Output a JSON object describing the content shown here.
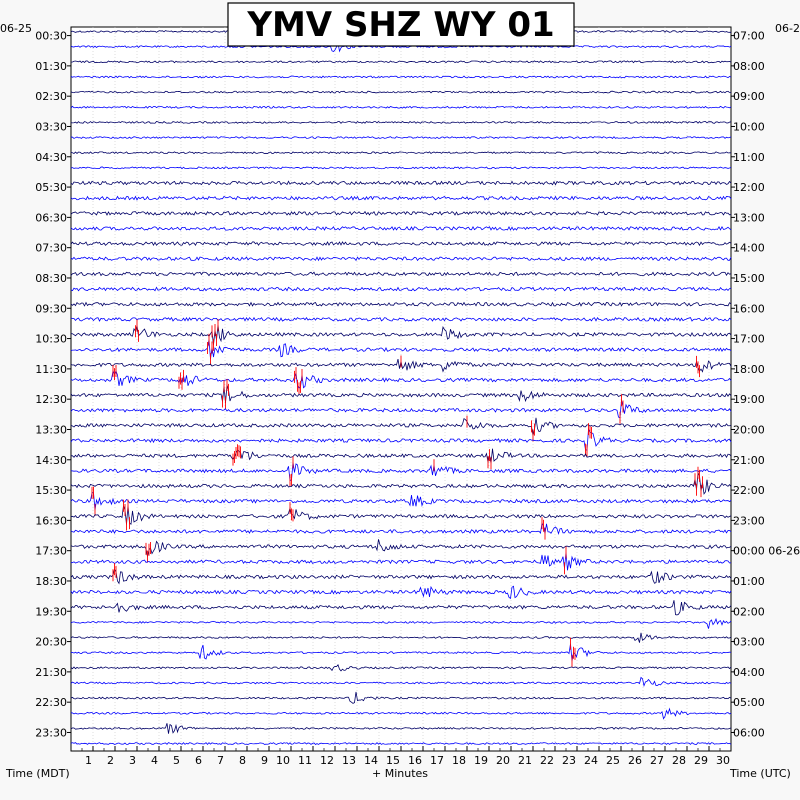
{
  "chart_data": {
    "type": "line",
    "title": "YMV SHZ WY 01",
    "left_date_label": "06-25",
    "right_date_label": "06-2",
    "xlabel": "+ Minutes",
    "left_axis_label": "Time (MDT)",
    "right_axis_label": "Time (UTC)",
    "xlim": [
      0,
      30
    ],
    "x_ticks": [
      "1",
      "2",
      "3",
      "4",
      "5",
      "6",
      "7",
      "8",
      "9",
      "10",
      "11",
      "12",
      "13",
      "14",
      "15",
      "16",
      "17",
      "18",
      "19",
      "20",
      "21",
      "22",
      "23",
      "24",
      "25",
      "26",
      "27",
      "28",
      "29",
      "30"
    ],
    "left_ticks": [
      "00:30",
      "01:30",
      "02:30",
      "03:30",
      "04:30",
      "05:30",
      "06:30",
      "07:30",
      "08:30",
      "09:30",
      "10:30",
      "11:30",
      "12:30",
      "13:30",
      "14:30",
      "15:30",
      "16:30",
      "17:30",
      "18:30",
      "19:30",
      "20:30",
      "21:30",
      "22:30",
      "23:30"
    ],
    "right_ticks": [
      "07:00",
      "08:00",
      "09:00",
      "10:00",
      "11:00",
      "12:00",
      "13:00",
      "14:00",
      "15:00",
      "16:00",
      "17:00",
      "18:00",
      "19:00",
      "20:00",
      "21:00",
      "22:00",
      "23:00",
      "00:00 06-26",
      "01:00",
      "02:00",
      "03:00",
      "04:00",
      "05:00",
      "06:00"
    ],
    "trace_count": 48,
    "trace_colors": [
      "#000066",
      "#0000ff"
    ],
    "clip_color": "#ff0000",
    "grid": true,
    "events": [
      {
        "trace": 1,
        "minute": 12.0,
        "amp": 2
      },
      {
        "trace": 20,
        "minute": 17.0,
        "amp": 2.5
      },
      {
        "trace": 20,
        "minute": 3.0,
        "amp": 3
      },
      {
        "trace": 20,
        "minute": 6.5,
        "amp": 4
      },
      {
        "trace": 21,
        "minute": 6.3,
        "amp": 3.5
      },
      {
        "trace": 21,
        "minute": 9.5,
        "amp": 2.5
      },
      {
        "trace": 22,
        "minute": 15.0,
        "amp": 2.5
      },
      {
        "trace": 22,
        "minute": 17.0,
        "amp": 2.5
      },
      {
        "trace": 22,
        "minute": 28.5,
        "amp": 3
      },
      {
        "trace": 23,
        "minute": 2.0,
        "amp": 3
      },
      {
        "trace": 23,
        "minute": 5.0,
        "amp": 3.5
      },
      {
        "trace": 23,
        "minute": 10.3,
        "amp": 4
      },
      {
        "trace": 24,
        "minute": 7.0,
        "amp": 3.5
      },
      {
        "trace": 24,
        "minute": 20.5,
        "amp": 2.5
      },
      {
        "trace": 25,
        "minute": 25.0,
        "amp": 3
      },
      {
        "trace": 26,
        "minute": 18.0,
        "amp": 2.5
      },
      {
        "trace": 26,
        "minute": 21.0,
        "amp": 3
      },
      {
        "trace": 27,
        "minute": 23.5,
        "amp": 3.5
      },
      {
        "trace": 28,
        "minute": 7.5,
        "amp": 4
      },
      {
        "trace": 28,
        "minute": 19.0,
        "amp": 3
      },
      {
        "trace": 29,
        "minute": 10.0,
        "amp": 3
      },
      {
        "trace": 29,
        "minute": 16.5,
        "amp": 2.5
      },
      {
        "trace": 30,
        "minute": 28.5,
        "amp": 4
      },
      {
        "trace": 31,
        "minute": 1.0,
        "amp": 3
      },
      {
        "trace": 31,
        "minute": 15.5,
        "amp": 2.5
      },
      {
        "trace": 32,
        "minute": 2.5,
        "amp": 4
      },
      {
        "trace": 32,
        "minute": 10.0,
        "amp": 3
      },
      {
        "trace": 33,
        "minute": 21.5,
        "amp": 3
      },
      {
        "trace": 34,
        "minute": 3.5,
        "amp": 3.5
      },
      {
        "trace": 34,
        "minute": 14.0,
        "amp": 2.5
      },
      {
        "trace": 35,
        "minute": 21.5,
        "amp": 2.5
      },
      {
        "trace": 35,
        "minute": 22.5,
        "amp": 2.5
      },
      {
        "trace": 36,
        "minute": 2.0,
        "amp": 3
      },
      {
        "trace": 36,
        "minute": 26.5,
        "amp": 2.5
      },
      {
        "trace": 37,
        "minute": 16.0,
        "amp": 2.5
      },
      {
        "trace": 37,
        "minute": 20.0,
        "amp": 2.5
      },
      {
        "trace": 38,
        "minute": 2.0,
        "amp": 2.5
      },
      {
        "trace": 38,
        "minute": 27.5,
        "amp": 2.5
      },
      {
        "trace": 39,
        "minute": 29.0,
        "amp": 2
      },
      {
        "trace": 40,
        "minute": 25.7,
        "amp": 2
      },
      {
        "trace": 41,
        "minute": 6.0,
        "amp": 2.5
      },
      {
        "trace": 41,
        "minute": 22.8,
        "amp": 3.5
      },
      {
        "trace": 42,
        "minute": 12.0,
        "amp": 1.5
      },
      {
        "trace": 43,
        "minute": 26.0,
        "amp": 2.5
      },
      {
        "trace": 44,
        "minute": 12.8,
        "amp": 2.5
      },
      {
        "trace": 45,
        "minute": 27.0,
        "amp": 2
      },
      {
        "trace": 46,
        "minute": 4.5,
        "amp": 2
      }
    ]
  }
}
